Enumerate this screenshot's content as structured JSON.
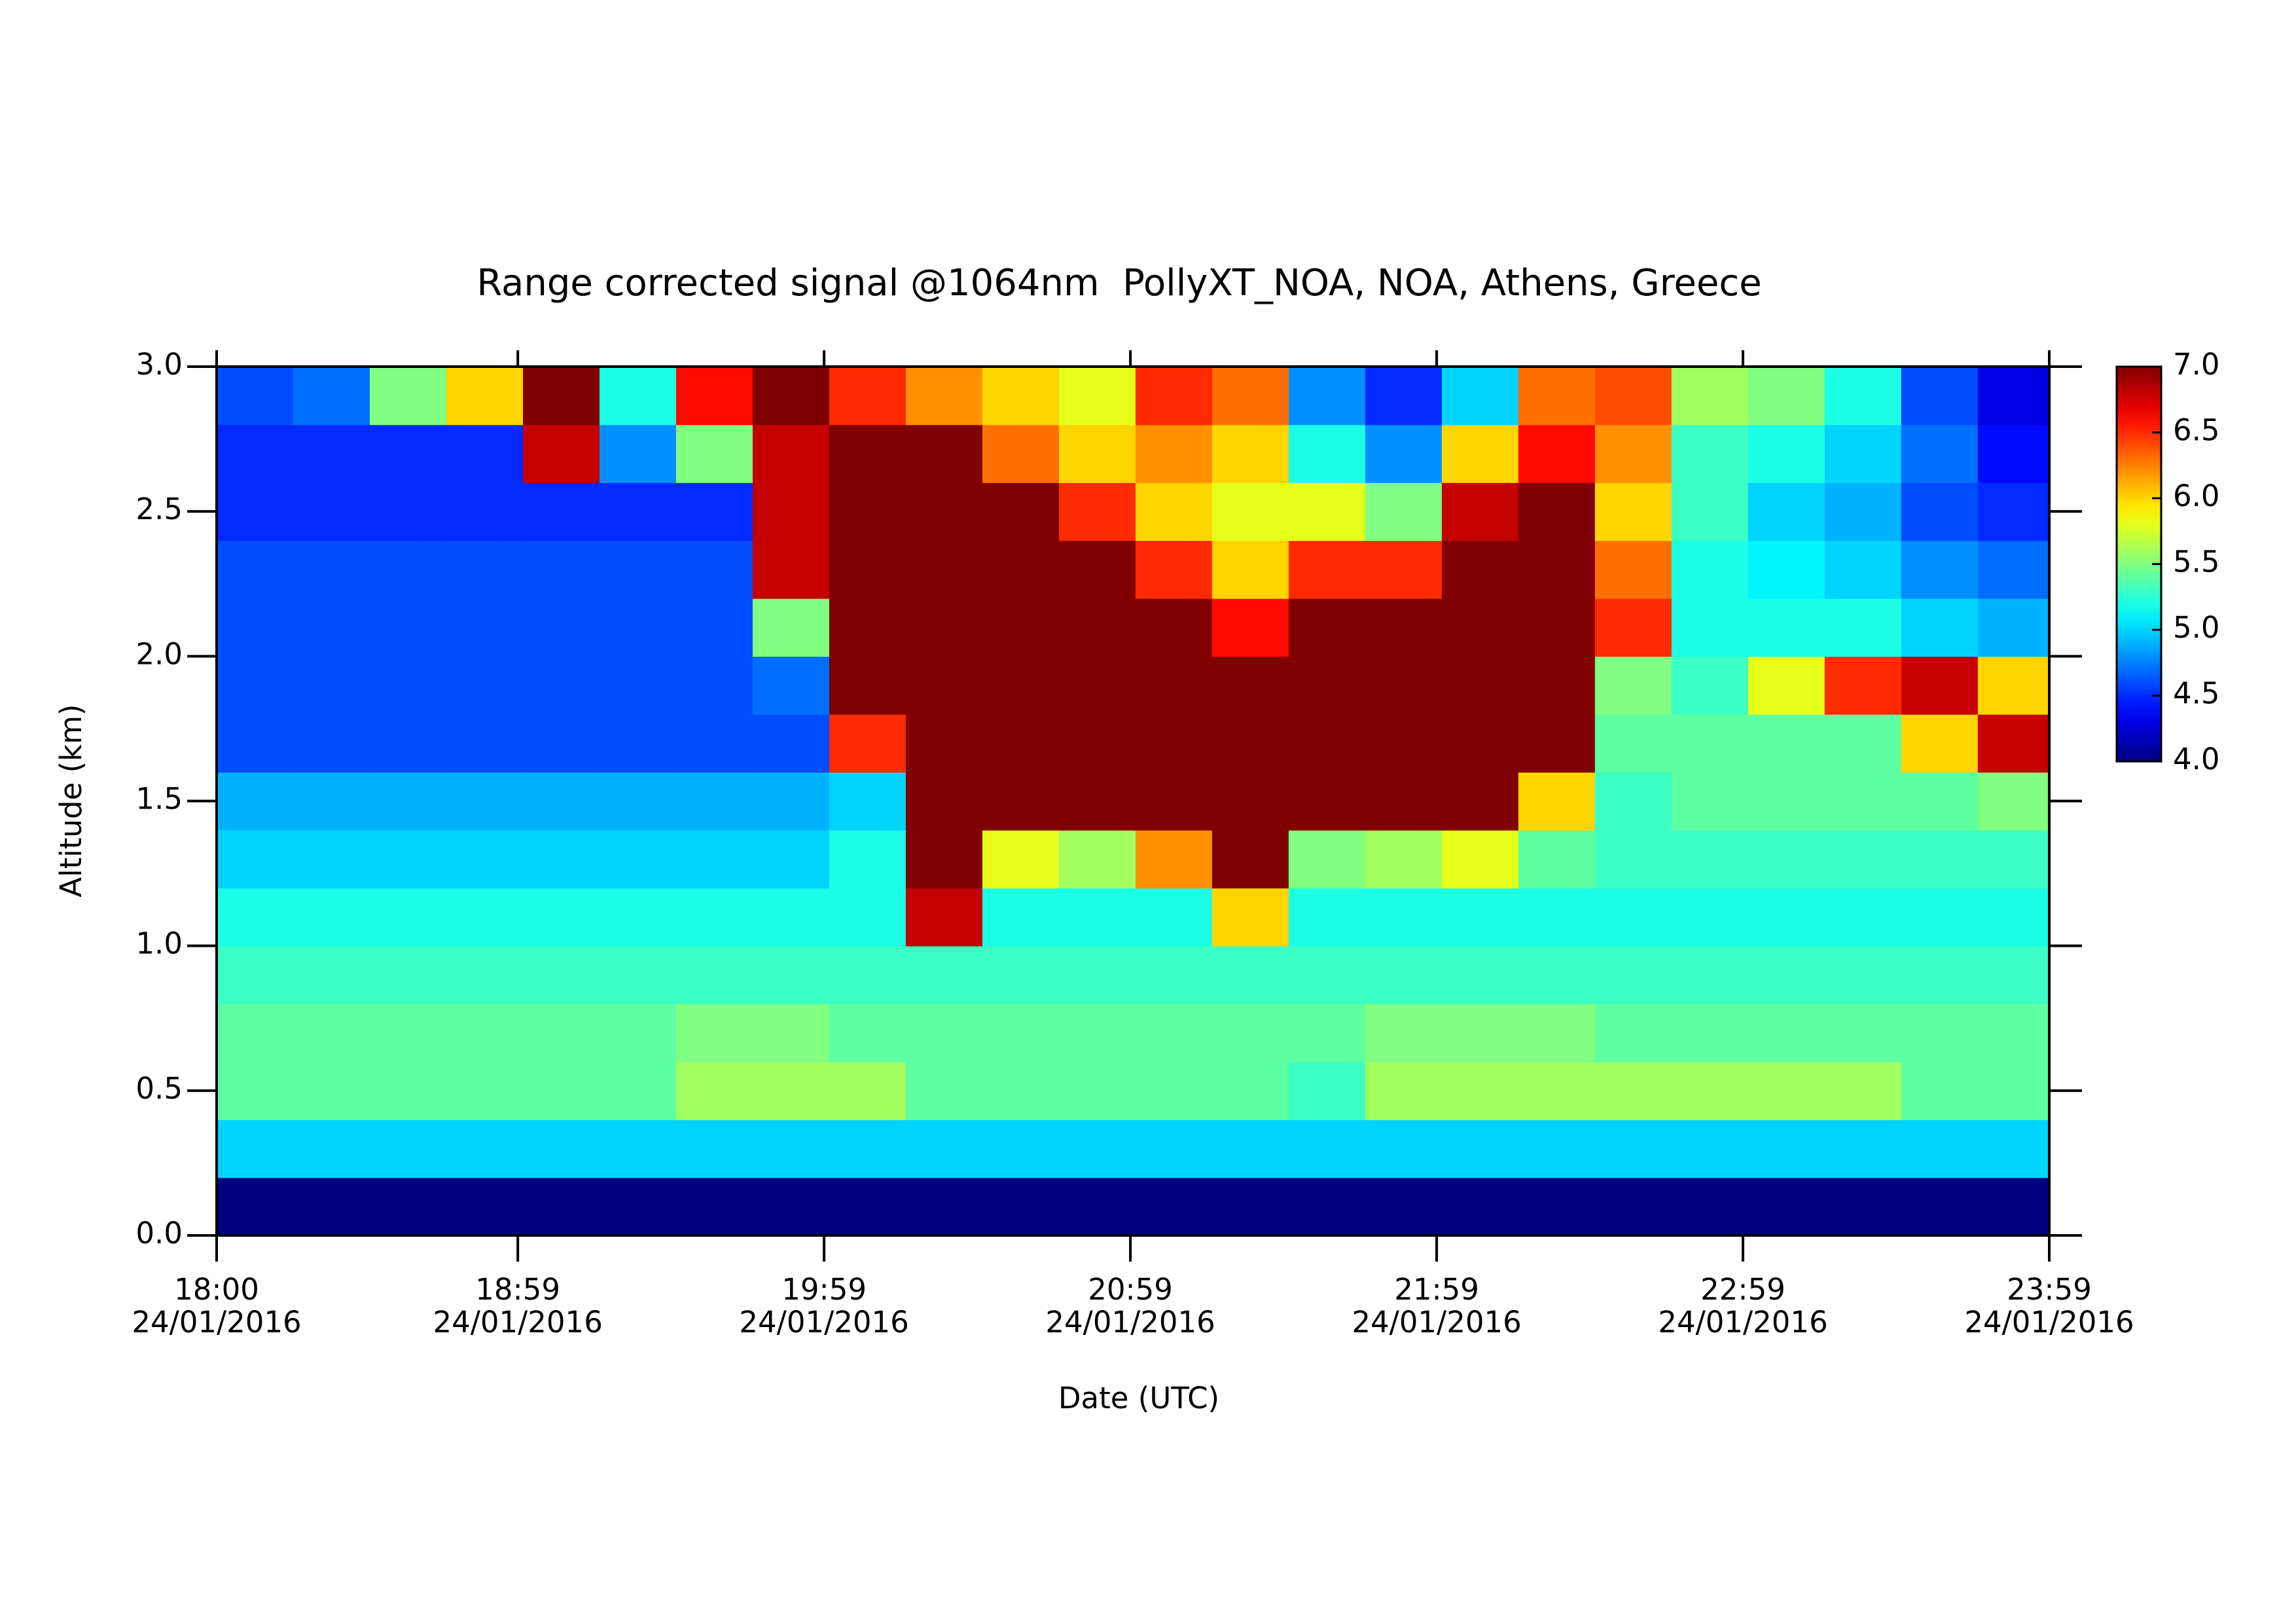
{
  "chart_data": {
    "type": "heatmap",
    "title": "Range corrected signal @1064nm  PollyXT_NOA, NOA, Athens, Greece",
    "x_label": "Date (UTC)",
    "y_label": "Altitude (km)",
    "xlim": [
      18,
      23.9833
    ],
    "ylim": [
      0,
      3
    ],
    "xticks": [
      {
        "value": 18,
        "label": "18:00\n24/01/2016"
      },
      {
        "value": 18.9833,
        "label": "18:59\n24/01/2016"
      },
      {
        "value": 19.9833,
        "label": "19:59\n24/01/2016"
      },
      {
        "value": 20.9833,
        "label": "20:59\n24/01/2016"
      },
      {
        "value": 21.9833,
        "label": "21:59\n24/01/2016"
      },
      {
        "value": 22.9833,
        "label": "22:59\n24/01/2016"
      },
      {
        "value": 23.9833,
        "label": "23:59\n24/01/2016"
      }
    ],
    "yticks": [
      {
        "value": 0,
        "label": "0.0"
      },
      0.5,
      {
        "value": 1,
        "label": "1.0"
      },
      1.5,
      {
        "value": 2,
        "label": "2.0"
      },
      2.5,
      {
        "value": 3,
        "label": "3.0"
      }
    ],
    "colormap": "jet",
    "clim": [
      4,
      7
    ],
    "cticks": [
      {
        "value": 4,
        "label": "4.0"
      },
      4.5,
      {
        "value": 5,
        "label": "5.0"
      },
      5.5,
      {
        "value": 6,
        "label": "6.0"
      },
      6.5,
      {
        "value": 7,
        "label": "7.0"
      }
    ],
    "x": [
      18.125,
      18.375,
      18.625,
      18.875,
      19.125,
      19.375,
      19.625,
      19.875,
      20.125,
      20.375,
      20.625,
      20.875,
      21.125,
      21.375,
      21.625,
      21.875,
      22.125,
      22.375,
      22.625,
      22.875,
      23.125,
      23.375,
      23.625,
      23.875
    ],
    "y": [
      0.1,
      0.3,
      0.5,
      0.7,
      0.9,
      1.1,
      1.3,
      1.5,
      1.7,
      1.9,
      2.1,
      2.3,
      2.5,
      2.7,
      2.9
    ],
    "z": [
      [
        4,
        4,
        4,
        4,
        4,
        4,
        4,
        4,
        4,
        4,
        4,
        4,
        4,
        4,
        4,
        4,
        4,
        4,
        4,
        4,
        4,
        4,
        4,
        4
      ],
      [
        5,
        5,
        5,
        5,
        5,
        5,
        5,
        5,
        5,
        5,
        5,
        5,
        5,
        5,
        5,
        5,
        5,
        5,
        5,
        5,
        5,
        5,
        5,
        5
      ],
      [
        5.4,
        5.4,
        5.4,
        5.4,
        5.4,
        5.4,
        5.6,
        5.6,
        5.6,
        5.4,
        5.4,
        5.4,
        5.4,
        5.4,
        5.3,
        5.6,
        5.6,
        5.6,
        5.6,
        5.6,
        5.6,
        5.6,
        5.4,
        5.4
      ],
      [
        5.4,
        5.4,
        5.4,
        5.4,
        5.4,
        5.4,
        5.5,
        5.5,
        5.4,
        5.4,
        5.4,
        5.4,
        5.4,
        5.4,
        5.4,
        5.5,
        5.5,
        5.5,
        5.4,
        5.4,
        5.4,
        5.4,
        5.4,
        5.4
      ],
      [
        5.3,
        5.3,
        5.3,
        5.3,
        5.3,
        5.3,
        5.3,
        5.3,
        5.3,
        5.3,
        5.3,
        5.3,
        5.3,
        5.3,
        5.3,
        5.3,
        5.3,
        5.3,
        5.3,
        5.3,
        5.3,
        5.3,
        5.3,
        5.3
      ],
      [
        5.2,
        5.2,
        5.2,
        5.2,
        5.2,
        5.2,
        5.2,
        5.2,
        5.2,
        6.8,
        5.2,
        5.2,
        5.2,
        6,
        5.2,
        5.2,
        5.2,
        5.2,
        5.2,
        5.2,
        5.2,
        5.2,
        5.2,
        5.2
      ],
      [
        5,
        5,
        5,
        5,
        5,
        5,
        5,
        5,
        5.2,
        7,
        5.8,
        5.6,
        6.2,
        7,
        5.5,
        5.6,
        5.8,
        5.4,
        5.3,
        5.3,
        5.3,
        5.3,
        5.3,
        5.3
      ],
      [
        4.9,
        4.9,
        4.9,
        4.9,
        4.9,
        4.9,
        4.9,
        4.9,
        5,
        7,
        7,
        7,
        7,
        7,
        7,
        7,
        7,
        6,
        5.3,
        5.4,
        5.4,
        5.4,
        5.4,
        5.5
      ],
      [
        4.6,
        4.6,
        4.6,
        4.6,
        4.6,
        4.6,
        4.6,
        4.6,
        6.5,
        7,
        7,
        7,
        7,
        7,
        7,
        7,
        7,
        7,
        5.4,
        5.4,
        5.4,
        5.4,
        6,
        6.8
      ],
      [
        4.6,
        4.6,
        4.6,
        4.6,
        4.6,
        4.6,
        4.6,
        4.7,
        7,
        7,
        7,
        7,
        7,
        7,
        7,
        7,
        7,
        7,
        5.5,
        5.3,
        5.8,
        6.5,
        6.8,
        6
      ],
      [
        4.6,
        4.6,
        4.6,
        4.6,
        4.6,
        4.6,
        4.6,
        5.5,
        7,
        7,
        7,
        7,
        7,
        6.6,
        7,
        7,
        7,
        7,
        6.5,
        5.2,
        5.2,
        5.2,
        5,
        4.9
      ],
      [
        4.6,
        4.6,
        4.6,
        4.6,
        4.6,
        4.6,
        4.6,
        6.8,
        7,
        7,
        7,
        7,
        6.5,
        6,
        6.5,
        6.5,
        7,
        7,
        6.3,
        5.2,
        5.1,
        5,
        4.8,
        4.7
      ],
      [
        4.5,
        4.5,
        4.5,
        4.5,
        4.5,
        4.5,
        4.5,
        6.8,
        7,
        7,
        7,
        6.5,
        6,
        5.8,
        5.8,
        5.5,
        6.8,
        7,
        6,
        5.3,
        5,
        4.9,
        4.6,
        4.5
      ],
      [
        4.5,
        4.5,
        4.5,
        4.5,
        6.8,
        4.8,
        5.5,
        6.8,
        7,
        7,
        6.3,
        6,
        6.2,
        6,
        5.2,
        4.8,
        6,
        6.6,
        6.2,
        5.3,
        5.2,
        5,
        4.7,
        4.4
      ],
      [
        4.6,
        4.7,
        5.5,
        6,
        7,
        5.2,
        6.6,
        7,
        6.5,
        6.2,
        6,
        5.8,
        6.5,
        6.3,
        4.8,
        4.5,
        5,
        6.3,
        6.4,
        5.6,
        5.5,
        5.2,
        4.6,
        4.3
      ]
    ]
  }
}
